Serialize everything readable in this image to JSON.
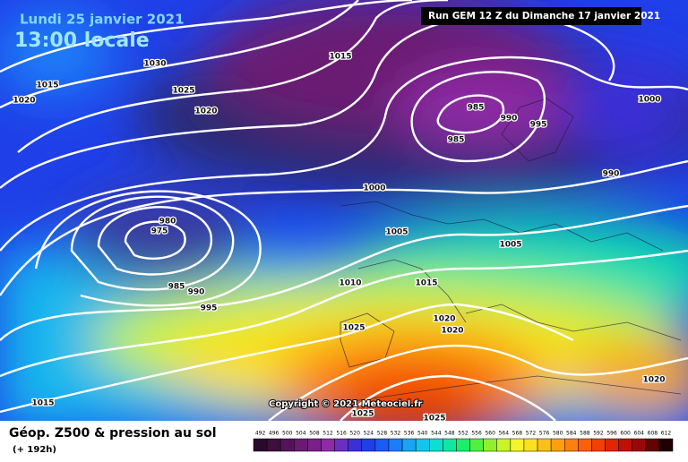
{
  "header": {
    "date": "Lundi 25 janvier 2021",
    "time": "13:00 locale",
    "run": "Run GEM 12 Z du Dimanche 17 janvier 2021"
  },
  "copyright": "Copyright © 2021 Meteociel.fr",
  "footer": {
    "title": "Géop. Z500 & pression au sol",
    "lead": "(+ 192h)"
  },
  "isobar_labels": [
    "1030",
    "1015",
    "1025",
    "1015",
    "1020",
    "1020",
    "985",
    "990",
    "995",
    "985",
    "1000",
    "990",
    "1000",
    "980",
    "975",
    "1005",
    "1005",
    "985",
    "990",
    "995",
    "1010",
    "1015",
    "1020",
    "1020",
    "1025",
    "1020",
    "1015",
    "1025",
    "1025"
  ],
  "scale": {
    "labels": [
      492,
      496,
      500,
      504,
      508,
      512,
      516,
      520,
      524,
      528,
      532,
      536,
      540,
      544,
      548,
      552,
      556,
      560,
      564,
      568,
      572,
      576,
      580,
      584,
      588,
      592,
      596,
      600,
      604,
      608,
      612
    ],
    "colors": [
      "#2a0a2a",
      "#3d0f3d",
      "#55145a",
      "#6a1a72",
      "#7b1f8a",
      "#8e2aa6",
      "#6a2fc0",
      "#3b2fd6",
      "#1f3fe8",
      "#1a5cf5",
      "#1a7ef7",
      "#1aa2f5",
      "#14c4ee",
      "#10dcd0",
      "#10e8a0",
      "#1aee6a",
      "#50f040",
      "#90f030",
      "#c8f428",
      "#f4f428",
      "#fbe020",
      "#fcc018",
      "#fca010",
      "#fc800c",
      "#fa6008",
      "#f04006",
      "#e02404",
      "#c01004",
      "#980808",
      "#600404",
      "#200000"
    ]
  }
}
